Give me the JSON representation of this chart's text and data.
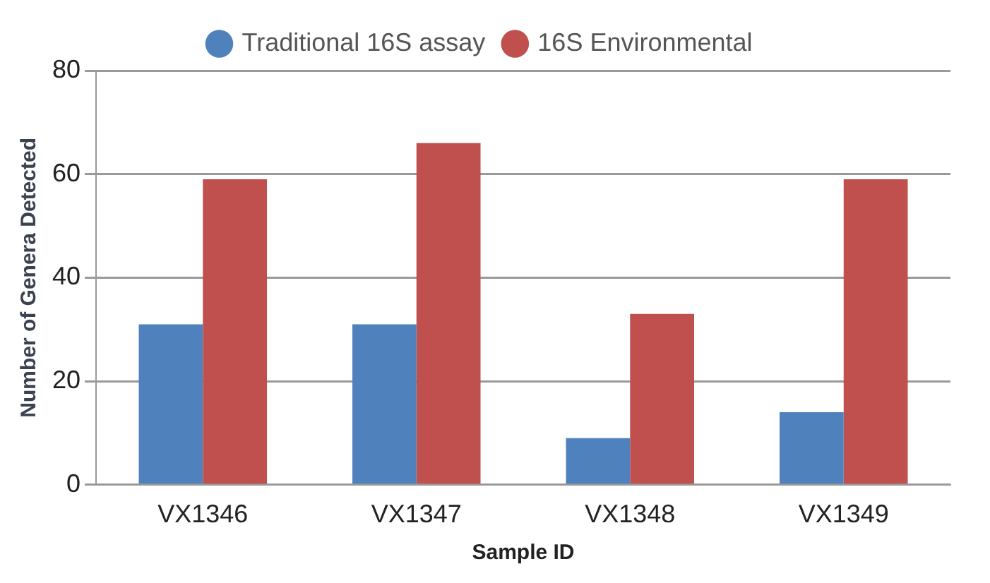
{
  "chart_data": {
    "type": "bar",
    "xlabel": "Sample ID",
    "ylabel": "Number of Genera Detected",
    "categories": [
      "VX1346",
      "VX1347",
      "VX1348",
      "VX1349"
    ],
    "series": [
      {
        "name": "Traditional 16S assay",
        "color": "#4f81bd",
        "values": [
          31,
          31,
          9,
          14
        ]
      },
      {
        "name": "16S Environmental",
        "color": "#c0504d",
        "values": [
          59,
          66,
          33,
          59
        ]
      }
    ],
    "ylim": [
      0,
      80
    ],
    "yticks": [
      0,
      20,
      40,
      60,
      80
    ],
    "grid": "y",
    "legend": "top"
  }
}
